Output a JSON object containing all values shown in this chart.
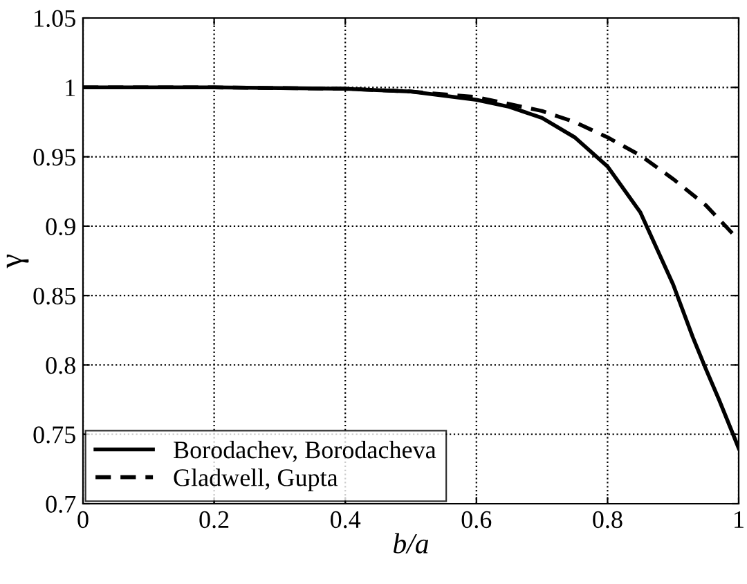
{
  "chart_data": {
    "type": "line",
    "xlabel": "b/a",
    "ylabel": "γ",
    "xlim": [
      0,
      1
    ],
    "ylim": [
      0.7,
      1.05
    ],
    "xticks": [
      0,
      0.2,
      0.4,
      0.6,
      0.8,
      1
    ],
    "yticks": [
      0.7,
      0.75,
      0.8,
      0.85,
      0.9,
      0.95,
      1,
      1.05
    ],
    "grid": true,
    "legend": "bottom left",
    "series": [
      {
        "name": "Borodachev, Borodacheva",
        "color": "#000000",
        "line_style": "solid",
        "x": [
          0,
          0.2,
          0.4,
          0.5,
          0.6,
          0.65,
          0.7,
          0.75,
          0.8,
          0.85,
          0.9,
          0.93,
          0.95,
          0.97,
          1.0
        ],
        "values": [
          1,
          1,
          0.999,
          0.997,
          0.991,
          0.986,
          0.978,
          0.964,
          0.943,
          0.91,
          0.858,
          0.82,
          0.797,
          0.775,
          0.74
        ]
      },
      {
        "name": "Gladwell, Gupta",
        "color": "#000000",
        "line_style": "dashed",
        "x": [
          0,
          0.2,
          0.4,
          0.5,
          0.6,
          0.7,
          0.75,
          0.8,
          0.85,
          0.9,
          0.95,
          1.0
        ],
        "values": [
          1,
          1,
          0.999,
          0.997,
          0.993,
          0.983,
          0.975,
          0.964,
          0.951,
          0.934,
          0.915,
          0.89
        ]
      }
    ]
  }
}
